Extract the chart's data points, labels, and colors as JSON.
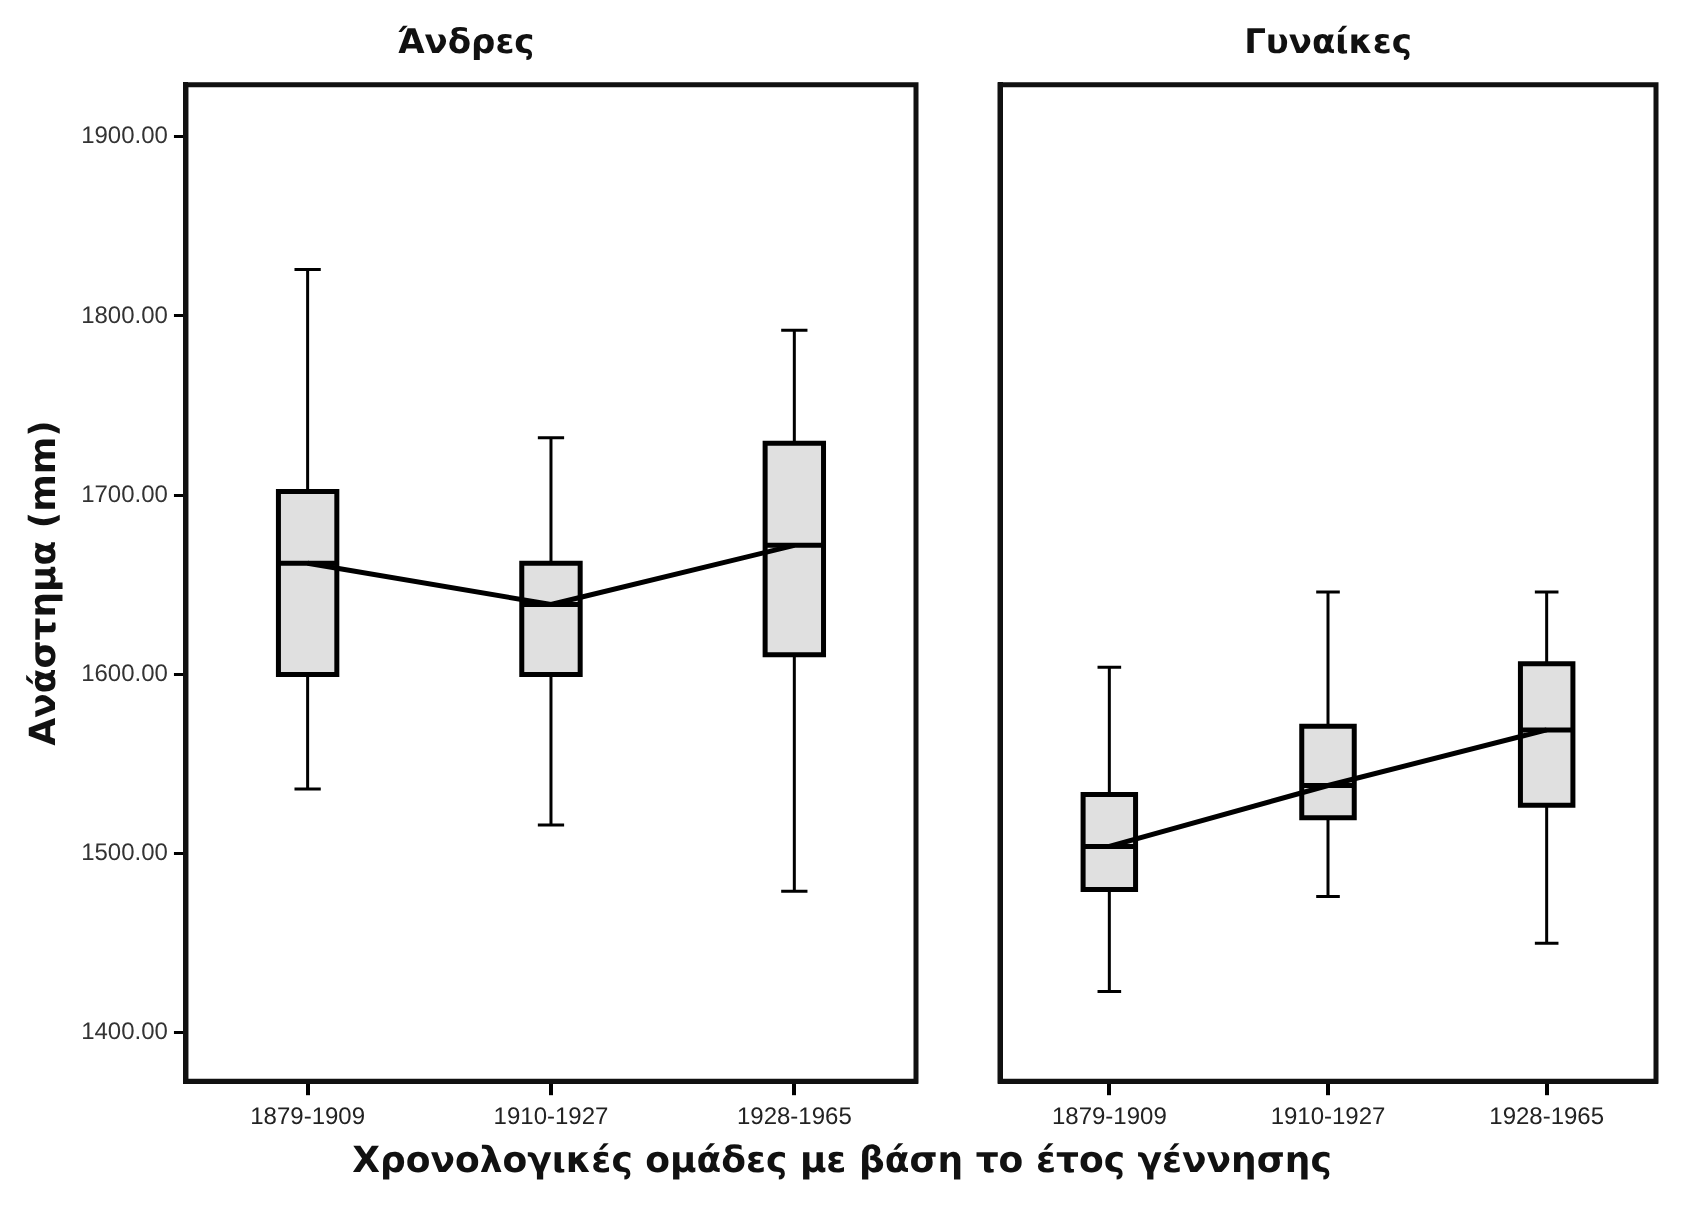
{
  "chart_data": [
    {
      "type": "box",
      "title": "Άνδρες",
      "ylabel": "Ανάστημα (mm)",
      "xlabel": "Χρονολογικές ομάδες με βάση το έτος γέννησης",
      "categories": [
        "1879-1909",
        "1910-1927",
        "1928-1965"
      ],
      "ylim": [
        1373,
        1929
      ],
      "yticks": [
        {
          "value": 1400,
          "label": "1400.00"
        },
        {
          "value": 1500,
          "label": "1500.00"
        },
        {
          "value": 1600,
          "label": "1600.00"
        },
        {
          "value": 1700,
          "label": "1700.00"
        },
        {
          "value": 1800,
          "label": "1800.00"
        },
        {
          "value": 1900,
          "label": "1900.00"
        }
      ],
      "grid": false,
      "series": [
        {
          "color": "#e0e0e0",
          "boxes": [
            {
              "low": 1536,
              "q1": 1600,
              "median": 1662,
              "q3": 1702,
              "high": 1826
            },
            {
              "low": 1516,
              "q1": 1600,
              "median": 1639,
              "q3": 1662,
              "high": 1732
            },
            {
              "low": 1479,
              "q1": 1611,
              "median": 1672,
              "q3": 1729,
              "high": 1792
            }
          ]
        },
        {
          "type": "line",
          "color": "#000000",
          "values": [
            1662,
            1639,
            1672
          ]
        }
      ]
    },
    {
      "type": "box",
      "title": "Γυναίκες",
      "categories": [
        "1879-1909",
        "1910-1927",
        "1928-1965"
      ],
      "ylim": [
        1373,
        1929
      ],
      "grid": false,
      "tick_labels": "x",
      "series": [
        {
          "color": "#e0e0e0",
          "boxes": [
            {
              "low": 1423,
              "q1": 1480,
              "median": 1504,
              "q3": 1533,
              "high": 1604
            },
            {
              "low": 1476,
              "q1": 1520,
              "median": 1538,
              "q3": 1571,
              "high": 1646
            },
            {
              "low": 1450,
              "q1": 1527,
              "median": 1569,
              "q3": 1606,
              "high": 1646
            }
          ]
        },
        {
          "type": "line",
          "color": "#000000",
          "values": [
            1504,
            1538,
            1569
          ]
        }
      ]
    }
  ]
}
